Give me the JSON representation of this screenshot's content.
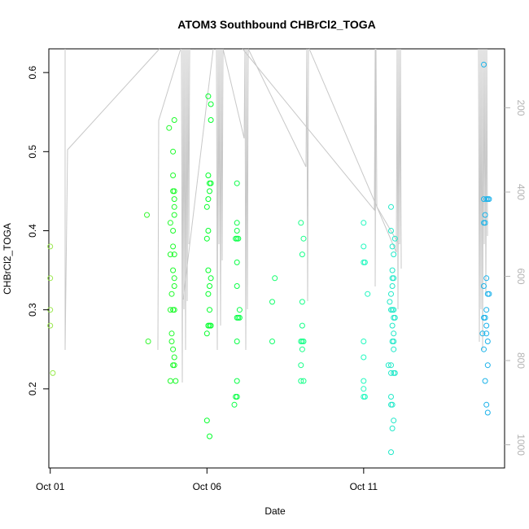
{
  "chart_data": {
    "type": "scatter",
    "title": "ATOM3 Southbound CHBrCl2_TOGA",
    "xlabel": "Date",
    "ylabel": "CHBrCl2_TOGA",
    "x_ticks": [
      "Oct 01",
      "Oct 06",
      "Oct 11"
    ],
    "xlim": [
      "2017-09-30T22:55",
      "2017-10-15T11:55"
    ],
    "ylim": [
      0.1,
      0.63
    ],
    "y_ticks": [
      0.2,
      0.3,
      0.4,
      0.5,
      0.6
    ],
    "y2_ticks": [
      200,
      400,
      600,
      800,
      1000
    ],
    "y2_lim_reversed": [
      60,
      1055
    ],
    "grid": false,
    "point_color_gradient": [
      "#9be84d",
      "#00ff22",
      "#22ffbb",
      "#1aa8f0"
    ],
    "profile_line_color": "#c8c8c8",
    "series": [
      {
        "values": [
          [
            "2017-10-01T00:00",
            0.38
          ],
          [
            "2017-10-01T00:00",
            0.34
          ],
          [
            "2017-10-01T00:00",
            0.3
          ],
          [
            "2017-10-01T00:00",
            0.28
          ],
          [
            "2017-10-01T02:00",
            0.22
          ],
          [
            "2017-10-04T02:00",
            0.42
          ],
          [
            "2017-10-04T03:00",
            0.26
          ],
          [
            "2017-10-04T19:00",
            0.53
          ],
          [
            "2017-10-04T20:00",
            0.41
          ],
          [
            "2017-10-04T20:00",
            0.37
          ],
          [
            "2017-10-04T20:00",
            0.3
          ],
          [
            "2017-10-04T20:00",
            0.21
          ],
          [
            "2017-10-04T21:00",
            0.32
          ],
          [
            "2017-10-04T21:00",
            0.27
          ],
          [
            "2017-10-04T21:00",
            0.26
          ],
          [
            "2017-10-04T22:00",
            0.5
          ],
          [
            "2017-10-04T22:00",
            0.47
          ],
          [
            "2017-10-04T22:00",
            0.45
          ],
          [
            "2017-10-04T22:00",
            0.4
          ],
          [
            "2017-10-04T22:00",
            0.38
          ],
          [
            "2017-10-04T22:00",
            0.35
          ],
          [
            "2017-10-04T22:00",
            0.3
          ],
          [
            "2017-10-04T22:00",
            0.25
          ],
          [
            "2017-10-04T22:00",
            0.23
          ],
          [
            "2017-10-04T23:00",
            0.54
          ],
          [
            "2017-10-04T23:00",
            0.45
          ],
          [
            "2017-10-04T23:00",
            0.44
          ],
          [
            "2017-10-04T23:00",
            0.43
          ],
          [
            "2017-10-04T23:00",
            0.42
          ],
          [
            "2017-10-04T23:00",
            0.37
          ],
          [
            "2017-10-04T23:00",
            0.34
          ],
          [
            "2017-10-04T23:00",
            0.33
          ],
          [
            "2017-10-04T23:00",
            0.3
          ],
          [
            "2017-10-04T23:00",
            0.24
          ],
          [
            "2017-10-04T23:00",
            0.23
          ],
          [
            "2017-10-05T00:00",
            0.21
          ],
          [
            "2017-10-06T00:00",
            0.43
          ],
          [
            "2017-10-06T00:00",
            0.39
          ],
          [
            "2017-10-06T00:00",
            0.27
          ],
          [
            "2017-10-06T00:00",
            0.16
          ],
          [
            "2017-10-06T01:00",
            0.57
          ],
          [
            "2017-10-06T01:00",
            0.47
          ],
          [
            "2017-10-06T01:00",
            0.44
          ],
          [
            "2017-10-06T01:00",
            0.4
          ],
          [
            "2017-10-06T01:00",
            0.35
          ],
          [
            "2017-10-06T01:00",
            0.32
          ],
          [
            "2017-10-06T01:00",
            0.28
          ],
          [
            "2017-10-06T02:00",
            0.46
          ],
          [
            "2017-10-06T02:00",
            0.45
          ],
          [
            "2017-10-06T02:00",
            0.33
          ],
          [
            "2017-10-06T02:00",
            0.3
          ],
          [
            "2017-10-06T02:00",
            0.28
          ],
          [
            "2017-10-06T02:00",
            0.14
          ],
          [
            "2017-10-06T03:00",
            0.56
          ],
          [
            "2017-10-06T03:00",
            0.54
          ],
          [
            "2017-10-06T03:00",
            0.46
          ],
          [
            "2017-10-06T03:00",
            0.34
          ],
          [
            "2017-10-06T03:00",
            0.28
          ],
          [
            "2017-10-06T21:00",
            0.18
          ],
          [
            "2017-10-06T22:00",
            0.39
          ],
          [
            "2017-10-06T22:00",
            0.19
          ],
          [
            "2017-10-06T23:00",
            0.46
          ],
          [
            "2017-10-06T23:00",
            0.41
          ],
          [
            "2017-10-06T23:00",
            0.4
          ],
          [
            "2017-10-06T23:00",
            0.39
          ],
          [
            "2017-10-06T23:00",
            0.36
          ],
          [
            "2017-10-06T23:00",
            0.33
          ],
          [
            "2017-10-06T23:00",
            0.29
          ],
          [
            "2017-10-06T23:00",
            0.26
          ],
          [
            "2017-10-06T23:00",
            0.21
          ],
          [
            "2017-10-06T23:00",
            0.19
          ],
          [
            "2017-10-07T00:00",
            0.39
          ],
          [
            "2017-10-07T00:00",
            0.29
          ],
          [
            "2017-10-07T01:00",
            0.3
          ],
          [
            "2017-10-07T01:00",
            0.29
          ]
        ]
      },
      {
        "values": [
          [
            "2017-10-08T02:00",
            0.31
          ],
          [
            "2017-10-08T02:00",
            0.26
          ],
          [
            "2017-10-08T04:00",
            0.34
          ],
          [
            "2017-10-09T00:00",
            0.41
          ],
          [
            "2017-10-09T00:00",
            0.26
          ],
          [
            "2017-10-09T00:00",
            0.23
          ],
          [
            "2017-10-09T00:00",
            0.21
          ],
          [
            "2017-10-09T01:00",
            0.37
          ],
          [
            "2017-10-09T01:00",
            0.31
          ],
          [
            "2017-10-09T01:00",
            0.28
          ],
          [
            "2017-10-09T01:00",
            0.26
          ],
          [
            "2017-10-09T01:00",
            0.25
          ],
          [
            "2017-10-09T02:00",
            0.39
          ],
          [
            "2017-10-09T02:00",
            0.26
          ],
          [
            "2017-10-09T02:00",
            0.21
          ],
          [
            "2017-10-11T00:00",
            0.41
          ],
          [
            "2017-10-11T00:00",
            0.38
          ],
          [
            "2017-10-11T00:00",
            0.36
          ],
          [
            "2017-10-11T00:00",
            0.26
          ],
          [
            "2017-10-11T00:00",
            0.24
          ],
          [
            "2017-10-11T00:00",
            0.21
          ],
          [
            "2017-10-11T00:00",
            0.2
          ],
          [
            "2017-10-11T00:00",
            0.19
          ],
          [
            "2017-10-11T01:00",
            0.36
          ],
          [
            "2017-10-11T01:00",
            0.19
          ],
          [
            "2017-10-11T03:00",
            0.32
          ],
          [
            "2017-10-11T19:00",
            0.23
          ],
          [
            "2017-10-11T20:00",
            0.31
          ],
          [
            "2017-10-11T21:00",
            0.43
          ],
          [
            "2017-10-11T21:00",
            0.4
          ],
          [
            "2017-10-11T21:00",
            0.32
          ],
          [
            "2017-10-11T21:00",
            0.3
          ],
          [
            "2017-10-11T21:00",
            0.23
          ],
          [
            "2017-10-11T21:00",
            0.22
          ],
          [
            "2017-10-11T21:00",
            0.19
          ],
          [
            "2017-10-11T21:00",
            0.18
          ],
          [
            "2017-10-11T21:00",
            0.12
          ],
          [
            "2017-10-11T22:00",
            0.38
          ],
          [
            "2017-10-11T22:00",
            0.35
          ],
          [
            "2017-10-11T22:00",
            0.34
          ],
          [
            "2017-10-11T22:00",
            0.33
          ],
          [
            "2017-10-11T22:00",
            0.3
          ],
          [
            "2017-10-11T22:00",
            0.28
          ],
          [
            "2017-10-11T22:00",
            0.26
          ],
          [
            "2017-10-11T22:00",
            0.18
          ],
          [
            "2017-10-11T22:00",
            0.15
          ],
          [
            "2017-10-11T23:00",
            0.37
          ],
          [
            "2017-10-11T23:00",
            0.34
          ],
          [
            "2017-10-11T23:00",
            0.3
          ],
          [
            "2017-10-11T23:00",
            0.29
          ],
          [
            "2017-10-11T23:00",
            0.27
          ],
          [
            "2017-10-11T23:00",
            0.26
          ],
          [
            "2017-10-11T23:00",
            0.25
          ],
          [
            "2017-10-11T23:00",
            0.22
          ],
          [
            "2017-10-11T23:00",
            0.16
          ],
          [
            "2017-10-12T00:00",
            0.39
          ],
          [
            "2017-10-12T00:00",
            0.29
          ],
          [
            "2017-10-12T00:00",
            0.22
          ]
        ]
      },
      {
        "values": [
          [
            "2017-10-14T19:00",
            0.27
          ],
          [
            "2017-10-14T20:00",
            0.61
          ],
          [
            "2017-10-14T20:00",
            0.44
          ],
          [
            "2017-10-14T20:00",
            0.41
          ],
          [
            "2017-10-14T20:00",
            0.33
          ],
          [
            "2017-10-14T20:00",
            0.29
          ],
          [
            "2017-10-14T20:00",
            0.25
          ],
          [
            "2017-10-14T21:00",
            0.42
          ],
          [
            "2017-10-14T21:00",
            0.41
          ],
          [
            "2017-10-14T21:00",
            0.29
          ],
          [
            "2017-10-14T21:00",
            0.21
          ],
          [
            "2017-10-14T22:00",
            0.44
          ],
          [
            "2017-10-14T22:00",
            0.34
          ],
          [
            "2017-10-14T22:00",
            0.3
          ],
          [
            "2017-10-14T22:00",
            0.28
          ],
          [
            "2017-10-14T22:00",
            0.27
          ],
          [
            "2017-10-14T22:00",
            0.18
          ],
          [
            "2017-10-14T23:00",
            0.44
          ],
          [
            "2017-10-14T23:00",
            0.32
          ],
          [
            "2017-10-14T23:00",
            0.26
          ],
          [
            "2017-10-14T23:00",
            0.23
          ],
          [
            "2017-10-14T23:00",
            0.17
          ],
          [
            "2017-10-15T00:00",
            0.44
          ],
          [
            "2017-10-15T00:00",
            0.32
          ]
        ]
      }
    ]
  }
}
